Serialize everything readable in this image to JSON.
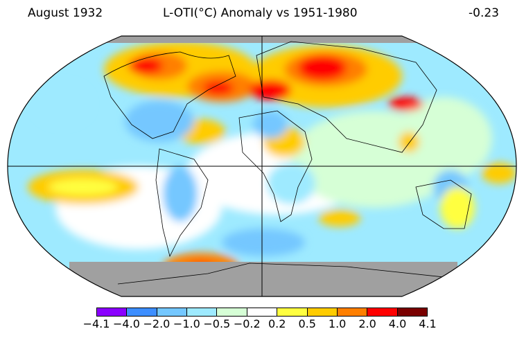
{
  "header": {
    "left": "August 1932",
    "center": "L-OTI(°C) Anomaly vs 1951-1980",
    "right": "-0.23"
  },
  "colorbar": {
    "ticks": [
      "−4.1",
      "−4.0",
      "−2.0",
      "−1.0",
      "−0.5",
      "−0.2",
      "0.2",
      "0.5",
      "1.0",
      "2.0",
      "4.0",
      "4.1"
    ],
    "colors": [
      "#8a00ff",
      "#3d8eff",
      "#74c7ff",
      "#9eeaff",
      "#d6ffd6",
      "#ffffff",
      "#ffff40",
      "#ffcc00",
      "#ff7f00",
      "#ff0000",
      "#7a0000"
    ]
  },
  "map": {
    "projection": "Robinson",
    "missing_color": "#a0a0a0"
  }
}
